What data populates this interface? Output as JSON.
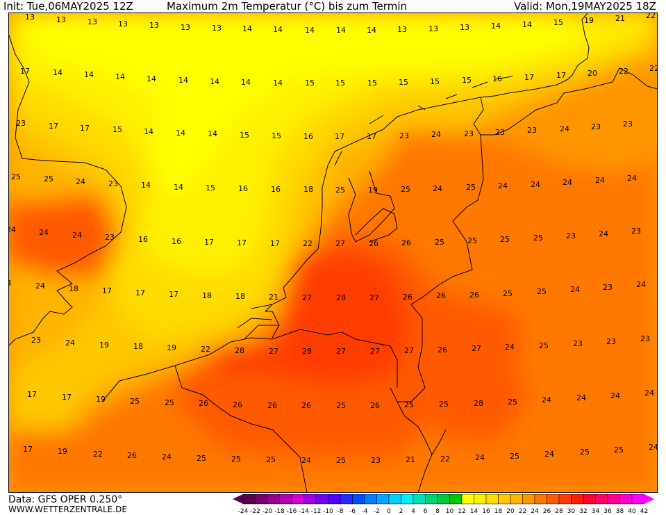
{
  "header": {
    "init": "Init: Tue,06MAY2025 12Z",
    "title": "Maximum 2m Temperatur (°C) bis zum Termin",
    "valid": "Valid: Mon,19MAY2025 18Z"
  },
  "footer": {
    "data_source": "Data: GFS OPER 0.250°",
    "website": "WWW.WETTERZENTRALE.DE"
  },
  "legend": {
    "ticks": [
      "-24",
      "-22",
      "-20",
      "-18",
      "-16",
      "-14",
      "-12",
      "-10",
      "-8",
      "-6",
      "-4",
      "-2",
      "0",
      "2",
      "4",
      "6",
      "8",
      "10",
      "12",
      "14",
      "16",
      "18",
      "20",
      "22",
      "24",
      "26",
      "28",
      "30",
      "32",
      "34",
      "36",
      "38",
      "40",
      "42"
    ],
    "colors": [
      "#5a004f",
      "#78006d",
      "#96008e",
      "#b400b0",
      "#d200d2",
      "#a000e0",
      "#7800f0",
      "#5000ff",
      "#2828ff",
      "#0050ff",
      "#0080ff",
      "#00a8ff",
      "#00d0ff",
      "#00f0f0",
      "#00e0b4",
      "#00d278",
      "#00c83c",
      "#00c800",
      "#ffff00",
      "#fff000",
      "#ffdc00",
      "#ffc800",
      "#ffb400",
      "#ff9600",
      "#ff7800",
      "#ff5a00",
      "#ff3c00",
      "#ff1e00",
      "#ff0032",
      "#ff0064",
      "#ff0096",
      "#ff00c8",
      "#ff00ff"
    ],
    "arrow_left": "#550055",
    "arrow_right": "#ff00ff"
  },
  "map_labels": [
    [
      "13",
      43,
      24
    ],
    [
      "13",
      88,
      28
    ],
    [
      "13",
      133,
      31
    ],
    [
      "13",
      177,
      34
    ],
    [
      "13",
      222,
      36
    ],
    [
      "13",
      267,
      39
    ],
    [
      "13",
      312,
      40
    ],
    [
      "14",
      356,
      41
    ],
    [
      "14",
      400,
      42
    ],
    [
      "14",
      446,
      43
    ],
    [
      "14",
      491,
      43
    ],
    [
      "14",
      535,
      43
    ],
    [
      "13",
      579,
      42
    ],
    [
      "13",
      624,
      41
    ],
    [
      "13",
      669,
      39
    ],
    [
      "14",
      714,
      37
    ],
    [
      "14",
      759,
      35
    ],
    [
      "15",
      804,
      32
    ],
    [
      "19",
      848,
      29
    ],
    [
      "21",
      893,
      26
    ],
    [
      "22",
      937,
      22
    ],
    [
      "17",
      36,
      102
    ],
    [
      "14",
      83,
      104
    ],
    [
      "14",
      128,
      107
    ],
    [
      "14",
      173,
      110
    ],
    [
      "14",
      218,
      113
    ],
    [
      "14",
      264,
      115
    ],
    [
      "14",
      309,
      117
    ],
    [
      "14",
      354,
      118
    ],
    [
      "14",
      400,
      119
    ],
    [
      "15",
      446,
      119
    ],
    [
      "15",
      490,
      119
    ],
    [
      "15",
      536,
      119
    ],
    [
      "15",
      581,
      118
    ],
    [
      "15",
      626,
      117
    ],
    [
      "15",
      672,
      115
    ],
    [
      "16",
      716,
      113
    ],
    [
      "17",
      762,
      111
    ],
    [
      "17",
      808,
      108
    ],
    [
      "20",
      853,
      105
    ],
    [
      "22",
      898,
      102
    ],
    [
      "22",
      942,
      98
    ],
    [
      "23",
      30,
      177
    ],
    [
      "17",
      77,
      181
    ],
    [
      "17",
      122,
      184
    ],
    [
      "15",
      169,
      186
    ],
    [
      "14",
      214,
      189
    ],
    [
      "14",
      260,
      191
    ],
    [
      "14",
      306,
      192
    ],
    [
      "15",
      352,
      194
    ],
    [
      "15",
      398,
      195
    ],
    [
      "16",
      444,
      196
    ],
    [
      "17",
      489,
      196
    ],
    [
      "17",
      535,
      196
    ],
    [
      "23",
      582,
      195
    ],
    [
      "24",
      628,
      193
    ],
    [
      "23",
      675,
      192
    ],
    [
      "23",
      720,
      190
    ],
    [
      "23",
      766,
      187
    ],
    [
      "24",
      813,
      185
    ],
    [
      "23",
      858,
      182
    ],
    [
      "23",
      904,
      178
    ],
    [
      "25",
      23,
      254
    ],
    [
      "25",
      70,
      257
    ],
    [
      "24",
      116,
      261
    ],
    [
      "23",
      163,
      264
    ],
    [
      "14",
      210,
      266
    ],
    [
      "14",
      257,
      269
    ],
    [
      "15",
      303,
      270
    ],
    [
      "16",
      350,
      271
    ],
    [
      "16",
      397,
      272
    ],
    [
      "18",
      444,
      272
    ],
    [
      "25",
      490,
      273
    ],
    [
      "19",
      537,
      273
    ],
    [
      "25",
      584,
      272
    ],
    [
      "24",
      630,
      271
    ],
    [
      "25",
      678,
      269
    ],
    [
      "24",
      724,
      267
    ],
    [
      "24",
      771,
      265
    ],
    [
      "24",
      817,
      262
    ],
    [
      "24",
      864,
      259
    ],
    [
      "24",
      910,
      256
    ],
    [
      "24",
      16,
      330
    ],
    [
      "24",
      63,
      334
    ],
    [
      "24",
      111,
      338
    ],
    [
      "23",
      158,
      341
    ],
    [
      "16",
      206,
      344
    ],
    [
      "16",
      254,
      347
    ],
    [
      "17",
      301,
      348
    ],
    [
      "17",
      348,
      349
    ],
    [
      "17",
      396,
      350
    ],
    [
      "22",
      443,
      350
    ],
    [
      "27",
      490,
      350
    ],
    [
      "26",
      538,
      350
    ],
    [
      "26",
      585,
      349
    ],
    [
      "25",
      633,
      348
    ],
    [
      "25",
      680,
      346
    ],
    [
      "25",
      727,
      344
    ],
    [
      "25",
      775,
      342
    ],
    [
      "23",
      822,
      339
    ],
    [
      "24",
      869,
      336
    ],
    [
      "23",
      916,
      332
    ],
    [
      "4",
      13,
      407
    ],
    [
      "24",
      58,
      411
    ],
    [
      "18",
      106,
      415
    ],
    [
      "17",
      154,
      418
    ],
    [
      "17",
      202,
      421
    ],
    [
      "17",
      250,
      423
    ],
    [
      "18",
      298,
      425
    ],
    [
      "18",
      346,
      426
    ],
    [
      "21",
      394,
      427
    ],
    [
      "27",
      442,
      428
    ],
    [
      "28",
      491,
      428
    ],
    [
      "27",
      539,
      428
    ],
    [
      "26",
      587,
      427
    ],
    [
      "26",
      635,
      425
    ],
    [
      "26",
      683,
      424
    ],
    [
      "25",
      731,
      422
    ],
    [
      "25",
      780,
      419
    ],
    [
      "24",
      828,
      416
    ],
    [
      "23",
      875,
      413
    ],
    [
      "24",
      923,
      409
    ],
    [
      "23",
      52,
      489
    ],
    [
      "24",
      101,
      493
    ],
    [
      "19",
      150,
      496
    ],
    [
      "18",
      199,
      498
    ],
    [
      "19",
      247,
      500
    ],
    [
      "22",
      296,
      502
    ],
    [
      "28",
      345,
      504
    ],
    [
      "27",
      394,
      505
    ],
    [
      "28",
      442,
      505
    ],
    [
      "27",
      491,
      505
    ],
    [
      "27",
      540,
      505
    ],
    [
      "27",
      589,
      504
    ],
    [
      "26",
      637,
      503
    ],
    [
      "27",
      686,
      501
    ],
    [
      "24",
      734,
      499
    ],
    [
      "25",
      783,
      497
    ],
    [
      "23",
      832,
      494
    ],
    [
      "23",
      880,
      491
    ],
    [
      "23",
      929,
      487
    ],
    [
      "17",
      46,
      567
    ],
    [
      "17",
      96,
      571
    ],
    [
      "19",
      145,
      574
    ],
    [
      "25",
      194,
      577
    ],
    [
      "25",
      244,
      579
    ],
    [
      "26",
      293,
      580
    ],
    [
      "26",
      342,
      582
    ],
    [
      "26",
      392,
      583
    ],
    [
      "26",
      441,
      583
    ],
    [
      "25",
      491,
      583
    ],
    [
      "26",
      540,
      583
    ],
    [
      "25",
      589,
      582
    ],
    [
      "25",
      639,
      581
    ],
    [
      "28",
      689,
      580
    ],
    [
      "25",
      738,
      578
    ],
    [
      "24",
      787,
      575
    ],
    [
      "24",
      837,
      572
    ],
    [
      "24",
      886,
      569
    ],
    [
      "24",
      935,
      565
    ],
    [
      "17",
      40,
      646
    ],
    [
      "19",
      90,
      649
    ],
    [
      "22",
      141,
      653
    ],
    [
      "26",
      190,
      655
    ],
    [
      "24",
      240,
      657
    ],
    [
      "25",
      290,
      659
    ],
    [
      "25",
      340,
      660
    ],
    [
      "25",
      390,
      661
    ],
    [
      "24",
      441,
      662
    ],
    [
      "25",
      491,
      662
    ],
    [
      "23",
      541,
      662
    ],
    [
      "21",
      591,
      661
    ],
    [
      "22",
      641,
      660
    ],
    [
      "24",
      691,
      658
    ],
    [
      "25",
      741,
      656
    ],
    [
      "24",
      791,
      653
    ],
    [
      "25",
      842,
      650
    ],
    [
      "25",
      891,
      647
    ],
    [
      "24",
      941,
      643
    ]
  ]
}
